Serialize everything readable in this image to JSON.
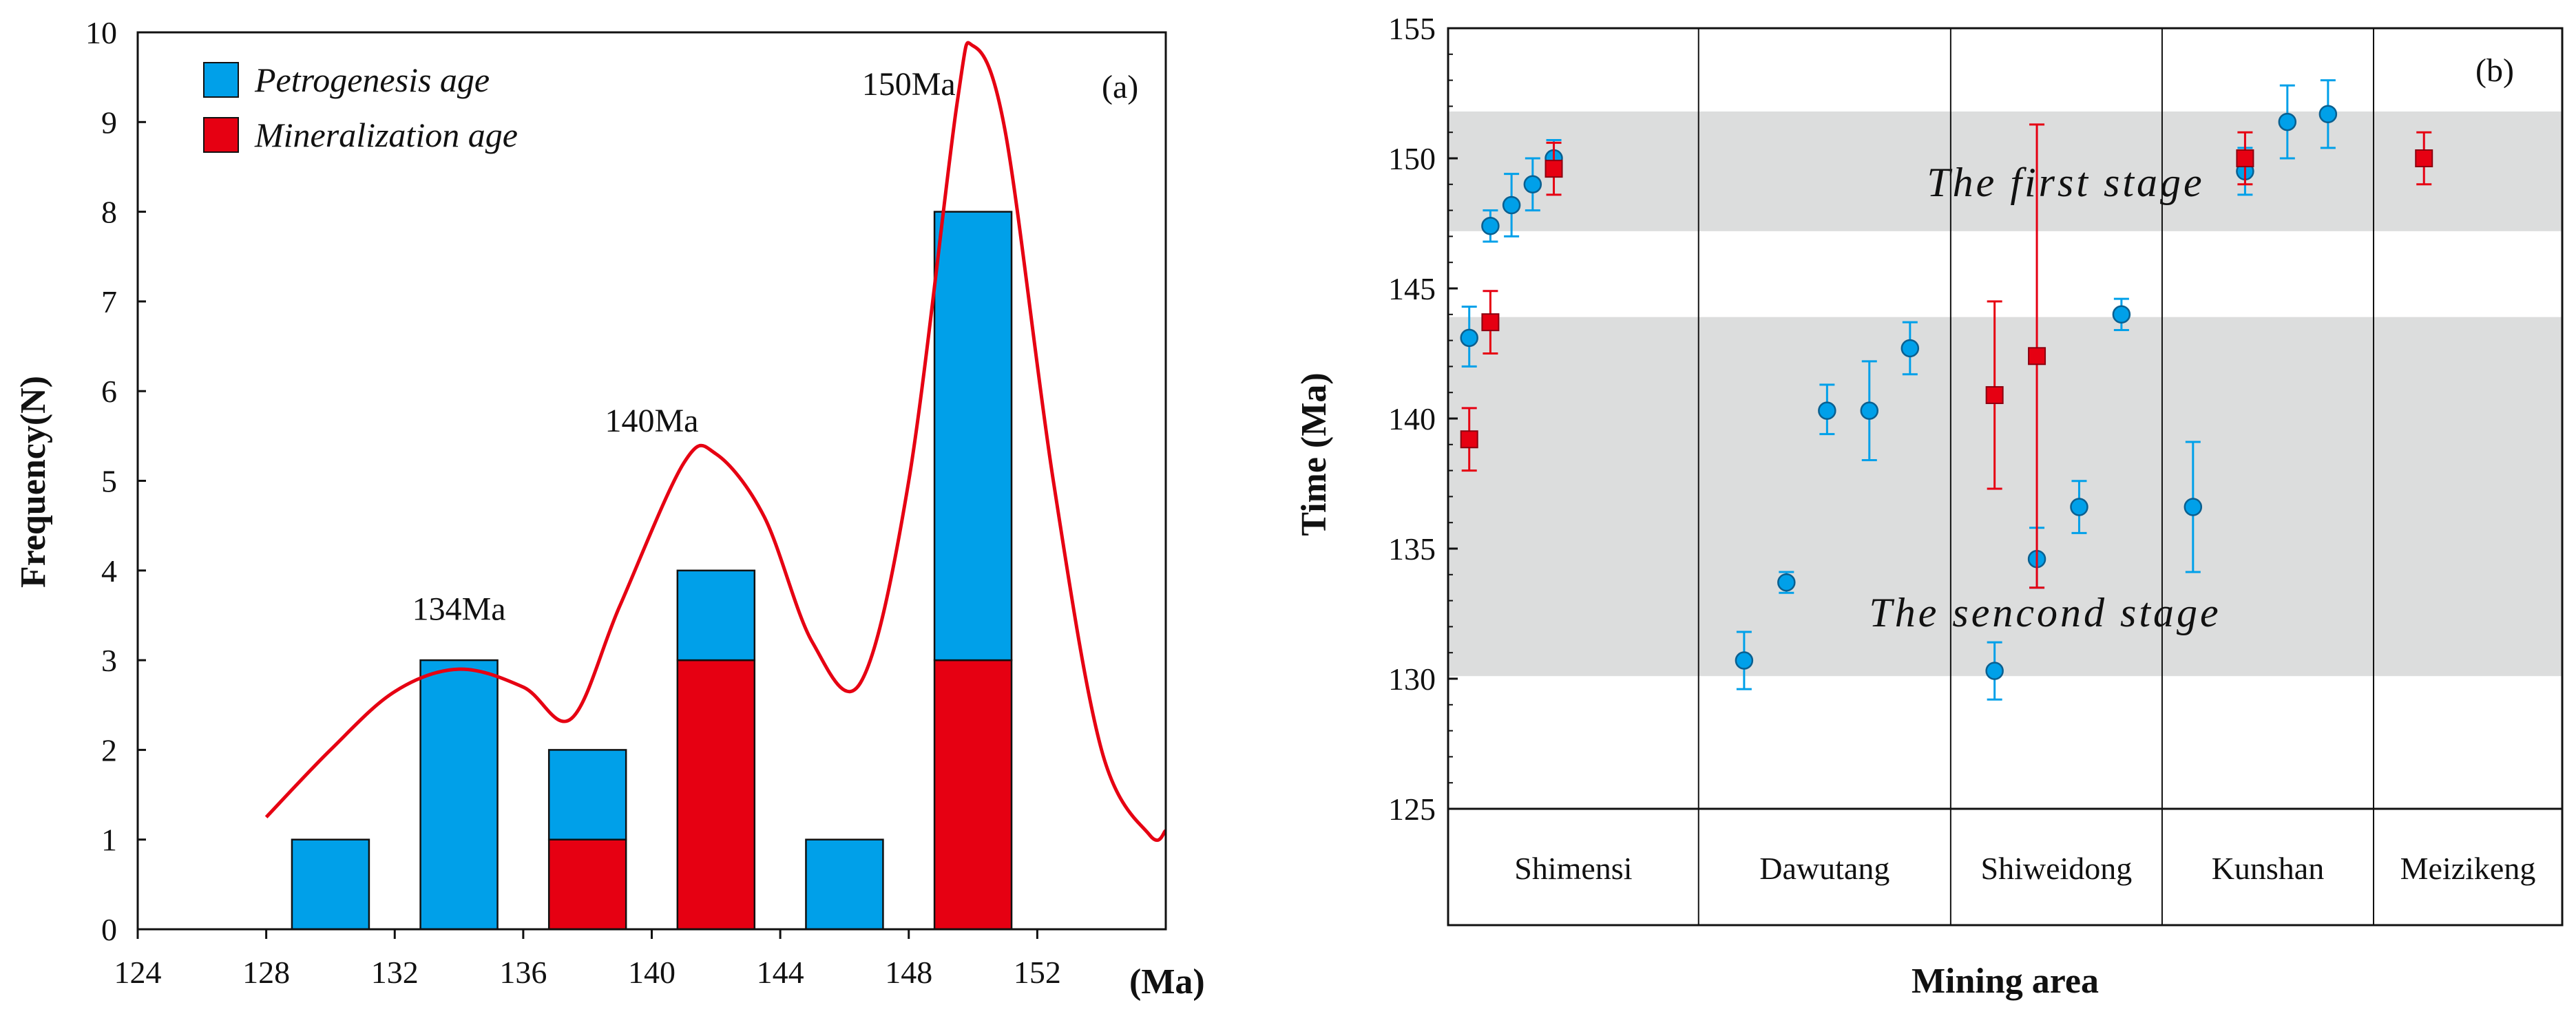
{
  "chart_data": [
    {
      "panel_label": "(a)",
      "type": "bar",
      "stacked": true,
      "xlabel": "(Ma)",
      "ylabel": "Frequency(N)",
      "xlim": [
        124,
        156
      ],
      "ylim": [
        0,
        10
      ],
      "x_ticks": [
        "124",
        "128",
        "132",
        "136",
        "140",
        "144",
        "148",
        "152"
      ],
      "y_ticks": [
        "0",
        "1",
        "2",
        "3",
        "4",
        "5",
        "6",
        "7",
        "8",
        "9",
        "10"
      ],
      "bin_centers": [
        130,
        134,
        138,
        142,
        146,
        150
      ],
      "bin_width": 2.4,
      "series": [
        {
          "name": "Mineralization age",
          "color": "#e60012",
          "values": [
            0,
            0,
            1,
            3,
            0,
            3
          ]
        },
        {
          "name": "Petrogenesis age",
          "color": "#00a0e9",
          "values": [
            1,
            3,
            1,
            1,
            1,
            5
          ]
        }
      ],
      "legend": {
        "position": "top-left",
        "entries": [
          "Petrogenesis age",
          "Mineralization age"
        ]
      },
      "curve": {
        "color": "#e60012",
        "points": [
          [
            128,
            1.25
          ],
          [
            130,
            2.0
          ],
          [
            132,
            2.65
          ],
          [
            134,
            2.9
          ],
          [
            136,
            2.7
          ],
          [
            137.5,
            2.35
          ],
          [
            139,
            3.6
          ],
          [
            141,
            5.2
          ],
          [
            142,
            5.3
          ],
          [
            143.5,
            4.6
          ],
          [
            145,
            3.2
          ],
          [
            146.5,
            2.75
          ],
          [
            148,
            5.0
          ],
          [
            149.5,
            9.2
          ],
          [
            150,
            9.85
          ],
          [
            151,
            8.9
          ],
          [
            152.5,
            5.0
          ],
          [
            154,
            2.0
          ],
          [
            155.5,
            1.05
          ],
          [
            156,
            1.1
          ]
        ]
      },
      "annotations": [
        {
          "text": "134Ma",
          "x": 134,
          "y": 3.45
        },
        {
          "text": "140Ma",
          "x": 140,
          "y": 5.55
        },
        {
          "text": "150Ma",
          "x": 148,
          "y": 9.3
        }
      ]
    },
    {
      "panel_label": "(b)",
      "type": "scatter",
      "xlabel": "Mining area",
      "ylabel": "Time (Ma)",
      "ylim": [
        125,
        155
      ],
      "y_ticks": [
        "125",
        "130",
        "135",
        "140",
        "145",
        "150",
        "155"
      ],
      "categories": [
        "Shimensi",
        "Dawutang",
        "Shiweidong",
        "Kunshan",
        "Meizikeng"
      ],
      "category_widths": [
        154,
        155,
        130,
        130,
        116
      ],
      "bands": [
        {
          "label": "The first stage",
          "from": 147.2,
          "to": 151.8
        },
        {
          "label": "The sencond stage",
          "from": 130.1,
          "to": 143.9
        }
      ],
      "series": [
        {
          "name": "Petrogenesis age",
          "color": "#00a0e9",
          "marker": "circle",
          "points": [
            {
              "x": 13,
              "y": 143.1,
              "lo": 142.0,
              "hi": 144.3
            },
            {
              "x": 26,
              "y": 147.4,
              "lo": 146.8,
              "hi": 148.0
            },
            {
              "x": 39,
              "y": 148.2,
              "lo": 147.0,
              "hi": 149.4
            },
            {
              "x": 52,
              "y": 149.0,
              "lo": 148.0,
              "hi": 150.0
            },
            {
              "x": 65,
              "y": 150.0,
              "lo": 149.3,
              "hi": 150.7
            },
            {
              "x": 182,
              "y": 130.7,
              "lo": 129.6,
              "hi": 131.8
            },
            {
              "x": 208,
              "y": 133.7,
              "lo": 133.3,
              "hi": 134.1
            },
            {
              "x": 233,
              "y": 140.3,
              "lo": 139.4,
              "hi": 141.3
            },
            {
              "x": 259,
              "y": 140.3,
              "lo": 138.4,
              "hi": 142.2
            },
            {
              "x": 284,
              "y": 142.7,
              "lo": 141.7,
              "hi": 143.7
            },
            {
              "x": 336,
              "y": 130.3,
              "lo": 129.2,
              "hi": 131.4
            },
            {
              "x": 362,
              "y": 134.6,
              "lo": 133.5,
              "hi": 135.8
            },
            {
              "x": 388,
              "y": 136.6,
              "lo": 135.6,
              "hi": 137.6
            },
            {
              "x": 414,
              "y": 144.0,
              "lo": 143.4,
              "hi": 144.6
            },
            {
              "x": 458,
              "y": 136.6,
              "lo": 134.1,
              "hi": 139.1
            },
            {
              "x": 490,
              "y": 149.5,
              "lo": 148.6,
              "hi": 150.4
            },
            {
              "x": 516,
              "y": 151.4,
              "lo": 150.0,
              "hi": 152.8
            },
            {
              "x": 541,
              "y": 151.7,
              "lo": 150.4,
              "hi": 153.0
            }
          ]
        },
        {
          "name": "Mineralization age",
          "color": "#e60012",
          "marker": "square",
          "points": [
            {
              "x": 13,
              "y": 139.2,
              "lo": 138.0,
              "hi": 140.4
            },
            {
              "x": 26,
              "y": 143.7,
              "lo": 142.5,
              "hi": 144.9
            },
            {
              "x": 65,
              "y": 149.6,
              "lo": 148.6,
              "hi": 150.6
            },
            {
              "x": 336,
              "y": 140.9,
              "lo": 137.3,
              "hi": 144.5
            },
            {
              "x": 362,
              "y": 142.4,
              "lo": 133.5,
              "hi": 151.3
            },
            {
              "x": 490,
              "y": 150.0,
              "lo": 149.0,
              "hi": 151.0
            },
            {
              "x": 600,
              "y": 150.0,
              "lo": 149.0,
              "hi": 151.0
            }
          ]
        }
      ]
    }
  ]
}
